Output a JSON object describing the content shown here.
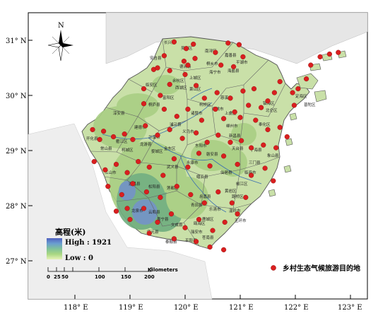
{
  "axes": {
    "lat_labels": [
      "31°  N",
      "30°  N",
      "29°  N",
      "28°  N",
      "27°  N"
    ],
    "lon_labels": [
      "118°  E",
      "119°  E",
      "120°  E",
      "121°  E",
      "122°  E",
      "123°  E"
    ]
  },
  "north_arrow": {
    "label": "N"
  },
  "legend": {
    "elevation_title": "高程(米)",
    "high_label": "High : 1921",
    "low_label": "Low : 0",
    "site_label": "乡村生态气候旅游目的地",
    "site_color": "#d91f1f"
  },
  "scale_bar": {
    "ticks": [
      "0",
      "25",
      "50",
      "100",
      "150",
      "200"
    ],
    "unit": "Kilometers"
  },
  "colors": {
    "plain": "#c9e0a8",
    "hill": "#a9cf84",
    "mountain": "#6fae7e",
    "peak": "#4d74b8",
    "neighbor": "#e6e6e6"
  },
  "regions": [
    {
      "name": "长兴县"
    },
    {
      "name": "吴兴区"
    },
    {
      "name": "南浔区"
    },
    {
      "name": "嘉善县"
    },
    {
      "name": "平湖市"
    },
    {
      "name": "海盐县"
    },
    {
      "name": "桐乡市"
    },
    {
      "name": "海宁市"
    },
    {
      "name": "安吉县"
    },
    {
      "name": "德清县"
    },
    {
      "name": "临安区"
    },
    {
      "name": "余杭区"
    },
    {
      "name": "富阳区"
    },
    {
      "name": "萧山区"
    },
    {
      "name": "上城区"
    },
    {
      "name": "西湖区"
    },
    {
      "name": "慈溪市"
    },
    {
      "name": "余姚市"
    },
    {
      "name": "镇海区"
    },
    {
      "name": "北仑区"
    },
    {
      "name": "定海区"
    },
    {
      "name": "普陀区"
    },
    {
      "name": "淳安县"
    },
    {
      "name": "建德市"
    },
    {
      "name": "桐庐县"
    },
    {
      "name": "诸暨市"
    },
    {
      "name": "柯桥区"
    },
    {
      "name": "上虞区"
    },
    {
      "name": "嵊州市"
    },
    {
      "name": "新昌县"
    },
    {
      "name": "奉化区"
    },
    {
      "name": "宁海县"
    },
    {
      "name": "象山县"
    },
    {
      "name": "开化县"
    },
    {
      "name": "常山县"
    },
    {
      "name": "衢江区"
    },
    {
      "name": "柯城区"
    },
    {
      "name": "龙游县"
    },
    {
      "name": "兰溪市"
    },
    {
      "name": "婺城区"
    },
    {
      "name": "金东区"
    },
    {
      "name": "义乌市"
    },
    {
      "name": "浦江县"
    },
    {
      "name": "东阳市"
    },
    {
      "name": "磐安县"
    },
    {
      "name": "天台县"
    },
    {
      "name": "三门县"
    },
    {
      "name": "临海市"
    },
    {
      "name": "仙居县"
    },
    {
      "name": "永康市"
    },
    {
      "name": "武义县"
    },
    {
      "name": "缙云县"
    },
    {
      "name": "江山市"
    },
    {
      "name": "遂昌县"
    },
    {
      "name": "松阳县"
    },
    {
      "name": "莲都区"
    },
    {
      "name": "青田县"
    },
    {
      "name": "黄岩区"
    },
    {
      "name": "椒江区"
    },
    {
      "name": "路桥区"
    },
    {
      "name": "温岭市"
    },
    {
      "name": "玉环市"
    },
    {
      "name": "乐清市"
    },
    {
      "name": "永嘉县"
    },
    {
      "name": "鹿城区"
    },
    {
      "name": "瓯海区"
    },
    {
      "name": "瑞安市"
    },
    {
      "name": "平阳县"
    },
    {
      "name": "文成县"
    },
    {
      "name": "泰顺县"
    },
    {
      "name": "苍南县"
    },
    {
      "name": "龙泉市"
    },
    {
      "name": "庆元县"
    },
    {
      "name": "景宁县"
    },
    {
      "name": "云和县"
    }
  ],
  "sites": [
    {
      "lon": 119.8,
      "lat": 30.97
    },
    {
      "lon": 120.15,
      "lat": 30.93
    },
    {
      "lon": 120.02,
      "lat": 30.85
    },
    {
      "lon": 120.78,
      "lat": 30.95
    },
    {
      "lon": 120.98,
      "lat": 30.92
    },
    {
      "lon": 120.55,
      "lat": 30.78
    },
    {
      "lon": 121.05,
      "lat": 30.7
    },
    {
      "lon": 119.62,
      "lat": 30.72
    },
    {
      "lon": 119.98,
      "lat": 30.62
    },
    {
      "lon": 120.18,
      "lat": 30.67
    },
    {
      "lon": 120.05,
      "lat": 30.55
    },
    {
      "lon": 120.65,
      "lat": 30.55
    },
    {
      "lon": 120.88,
      "lat": 30.52
    },
    {
      "lon": 119.43,
      "lat": 30.47
    },
    {
      "lon": 119.5,
      "lat": 30.5
    },
    {
      "lon": 119.72,
      "lat": 30.45
    },
    {
      "lon": 120.0,
      "lat": 30.38
    },
    {
      "lon": 119.25,
      "lat": 30.12
    },
    {
      "lon": 119.55,
      "lat": 30.0
    },
    {
      "lon": 119.72,
      "lat": 30.2
    },
    {
      "lon": 120.2,
      "lat": 30.18
    },
    {
      "lon": 120.35,
      "lat": 29.95
    },
    {
      "lon": 120.58,
      "lat": 30.05
    },
    {
      "lon": 120.82,
      "lat": 29.95
    },
    {
      "lon": 121.05,
      "lat": 30.08
    },
    {
      "lon": 121.25,
      "lat": 30.12
    },
    {
      "lon": 121.62,
      "lat": 30.05
    },
    {
      "lon": 121.72,
      "lat": 30.25
    },
    {
      "lon": 121.95,
      "lat": 30.05
    },
    {
      "lon": 122.05,
      "lat": 30.12
    },
    {
      "lon": 122.2,
      "lat": 30.3
    },
    {
      "lon": 122.28,
      "lat": 30.55
    },
    {
      "lon": 122.45,
      "lat": 30.7
    },
    {
      "lon": 122.62,
      "lat": 30.75
    },
    {
      "lon": 122.78,
      "lat": 30.78
    },
    {
      "lon": 121.98,
      "lat": 29.82
    },
    {
      "lon": 121.5,
      "lat": 29.9
    },
    {
      "lon": 121.38,
      "lat": 29.78
    },
    {
      "lon": 121.15,
      "lat": 29.82
    },
    {
      "lon": 120.9,
      "lat": 29.7
    },
    {
      "lon": 119.25,
      "lat": 29.85
    },
    {
      "lon": 119.62,
      "lat": 29.75
    },
    {
      "lon": 119.85,
      "lat": 29.62
    },
    {
      "lon": 120.05,
      "lat": 29.75
    },
    {
      "lon": 120.3,
      "lat": 29.55
    },
    {
      "lon": 120.55,
      "lat": 29.75
    },
    {
      "lon": 120.7,
      "lat": 29.58
    },
    {
      "lon": 121.0,
      "lat": 29.6
    },
    {
      "lon": 121.28,
      "lat": 29.55
    },
    {
      "lon": 121.5,
      "lat": 29.38
    },
    {
      "lon": 121.72,
      "lat": 29.42
    },
    {
      "lon": 121.85,
      "lat": 29.25
    },
    {
      "lon": 118.32,
      "lat": 29.38
    },
    {
      "lon": 118.45,
      "lat": 29.2
    },
    {
      "lon": 118.52,
      "lat": 29.35
    },
    {
      "lon": 118.7,
      "lat": 29.25
    },
    {
      "lon": 118.9,
      "lat": 29.3
    },
    {
      "lon": 119.05,
      "lat": 29.2
    },
    {
      "lon": 119.28,
      "lat": 29.45
    },
    {
      "lon": 119.5,
      "lat": 29.28
    },
    {
      "lon": 119.72,
      "lat": 29.38
    },
    {
      "lon": 119.95,
      "lat": 29.22
    },
    {
      "lon": 120.2,
      "lat": 29.32
    },
    {
      "lon": 120.4,
      "lat": 29.15
    },
    {
      "lon": 120.6,
      "lat": 29.28
    },
    {
      "lon": 120.82,
      "lat": 29.15
    },
    {
      "lon": 121.02,
      "lat": 29.18
    },
    {
      "lon": 121.2,
      "lat": 29.05
    },
    {
      "lon": 121.42,
      "lat": 29.1
    },
    {
      "lon": 121.65,
      "lat": 29.05
    },
    {
      "lon": 118.35,
      "lat": 28.8
    },
    {
      "lon": 118.55,
      "lat": 28.65
    },
    {
      "lon": 118.75,
      "lat": 28.75
    },
    {
      "lon": 118.95,
      "lat": 28.6
    },
    {
      "lon": 119.15,
      "lat": 28.8
    },
    {
      "lon": 119.35,
      "lat": 28.7
    },
    {
      "lon": 119.6,
      "lat": 28.55
    },
    {
      "lon": 119.8,
      "lat": 28.85
    },
    {
      "lon": 120.05,
      "lat": 28.7
    },
    {
      "lon": 120.25,
      "lat": 28.95
    },
    {
      "lon": 120.45,
      "lat": 28.72
    },
    {
      "lon": 120.7,
      "lat": 28.9
    },
    {
      "lon": 120.95,
      "lat": 28.75
    },
    {
      "lon": 121.2,
      "lat": 28.55
    },
    {
      "lon": 121.45,
      "lat": 28.68
    },
    {
      "lon": 121.6,
      "lat": 28.45
    },
    {
      "lon": 118.6,
      "lat": 28.35
    },
    {
      "lon": 118.85,
      "lat": 28.2
    },
    {
      "lon": 119.05,
      "lat": 28.4
    },
    {
      "lon": 119.3,
      "lat": 28.25
    },
    {
      "lon": 119.55,
      "lat": 28.15
    },
    {
      "lon": 119.85,
      "lat": 28.35
    },
    {
      "lon": 120.1,
      "lat": 28.2
    },
    {
      "lon": 120.35,
      "lat": 28.05
    },
    {
      "lon": 120.6,
      "lat": 28.25
    },
    {
      "lon": 120.85,
      "lat": 28.05
    },
    {
      "lon": 121.1,
      "lat": 28.15
    },
    {
      "lon": 118.75,
      "lat": 27.9
    },
    {
      "lon": 119.0,
      "lat": 27.75
    },
    {
      "lon": 119.25,
      "lat": 27.95
    },
    {
      "lon": 119.5,
      "lat": 27.7
    },
    {
      "lon": 119.75,
      "lat": 27.85
    },
    {
      "lon": 120.0,
      "lat": 27.6
    },
    {
      "lon": 120.25,
      "lat": 27.75
    },
    {
      "lon": 120.5,
      "lat": 27.55
    },
    {
      "lon": 120.72,
      "lat": 27.7
    },
    {
      "lon": 120.95,
      "lat": 27.85
    },
    {
      "lon": 119.8,
      "lat": 27.4
    },
    {
      "lon": 120.2,
      "lat": 27.35
    },
    {
      "lon": 120.45,
      "lat": 27.25
    },
    {
      "lon": 120.7,
      "lat": 27.2
    },
    {
      "lon": 119.35,
      "lat": 27.5
    },
    {
      "lon": 118.95,
      "lat": 27.95
    }
  ]
}
